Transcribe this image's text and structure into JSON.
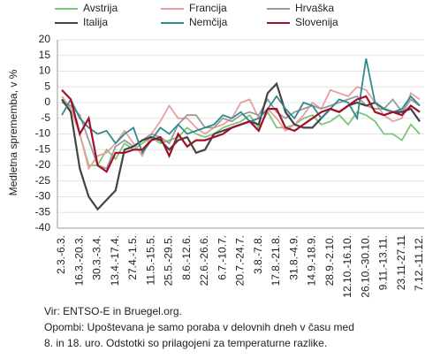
{
  "chart_data": {
    "type": "line",
    "ylabel": "Medletna sprememba, v %",
    "categories": [
      "2.3.-6.3.",
      null,
      "16.3.-20.3.",
      null,
      "30.3.-3.4.",
      null,
      "13.4.-17.4.",
      null,
      "27.4.-1.5.",
      null,
      "11.5.-15.5.",
      null,
      "25.5.-29.5.",
      null,
      "8.6.-12.6.",
      null,
      "22.6.-26.6.",
      null,
      "6.7.-10.7.",
      null,
      "20.7.-24.7.",
      null,
      "3.8.-7.8.",
      null,
      "17.8.-21.8.",
      null,
      "31.8.-4.9.",
      null,
      "14.9.-18.9.",
      null,
      "28.9.-2.10.",
      null,
      "12.10.-16.10.",
      null,
      "26.10.-30.10.",
      null,
      "9.11.-13.11.",
      null,
      "23.11-27.11",
      null,
      "7.12.-11.12."
    ],
    "series": [
      {
        "name": "Avstrija",
        "color": "#7cc57a",
        "values": [
          1,
          -2,
          -10,
          -20,
          -20,
          -15,
          -18,
          -13,
          -15,
          -13,
          -11,
          -13,
          -12,
          -11,
          -8,
          -10,
          -11,
          -10,
          -8,
          -7,
          -6,
          -4,
          -8,
          -3,
          -8,
          -8,
          -7,
          -5,
          -4,
          -7,
          -6,
          -4,
          -7,
          -3,
          -4,
          -6,
          -10,
          -10,
          -12,
          -7,
          -10
        ]
      },
      {
        "name": "Francija",
        "color": "#e8a09c",
        "values": [
          2,
          -2,
          -10,
          -21,
          -17,
          -16,
          -13,
          -9,
          -13,
          -17,
          -10,
          -6,
          -1,
          -5,
          -5,
          -8,
          -10,
          -8,
          -7,
          -5,
          0,
          1,
          -5,
          -2,
          -5,
          -9,
          -7,
          -4,
          0,
          -2,
          4,
          3,
          2,
          5,
          4,
          0,
          -4,
          -6,
          -5,
          3,
          1
        ]
      },
      {
        "name": "Hrvaška",
        "color": "#9a9a9a",
        "values": [
          0,
          -1,
          -4,
          -12,
          -20,
          -21,
          -14,
          -12,
          -14,
          -12,
          -10,
          -11,
          -13,
          -7,
          -4,
          -4,
          -8,
          -8,
          -5,
          -6,
          -4,
          -3,
          -4,
          1,
          -3,
          -5,
          -3,
          -2,
          -1,
          -2,
          -1,
          0,
          1,
          2,
          -1,
          -2,
          -2,
          1,
          -3,
          1,
          -1
        ]
      },
      {
        "name": "Italija",
        "color": "#444444",
        "values": [
          1,
          -3,
          -21,
          -30,
          -34,
          -31,
          -28,
          -15,
          -14,
          -12,
          -11,
          -12,
          -15,
          -12,
          -11,
          -16,
          -15,
          -10,
          -9,
          -8,
          -7,
          -6,
          -7,
          3,
          6,
          -3,
          -7,
          -8,
          -8,
          -5,
          -2,
          -3,
          -1,
          0,
          -1,
          0,
          -2,
          -3,
          -3,
          -2,
          -6
        ]
      },
      {
        "name": "Nemčija",
        "color": "#2e8a8f",
        "values": [
          -4,
          1,
          -5,
          -8,
          -10,
          -9,
          -13,
          -10,
          -8,
          -16,
          -12,
          -8,
          -10,
          -7,
          -10,
          -9,
          -8,
          -7,
          -4,
          -5,
          -3,
          -6,
          -5,
          -2,
          2,
          -2,
          -5,
          0,
          -1,
          -5,
          -2,
          1,
          0,
          -5,
          14,
          0,
          -2,
          -3,
          -2,
          2,
          -1
        ]
      },
      {
        "name": "Slovenija",
        "color": "#a0102a",
        "values": [
          4,
          1,
          -10,
          -5,
          -20,
          -22,
          -16,
          -16,
          -15,
          -15,
          -12,
          -11,
          -17,
          -10,
          -14,
          -12,
          -12,
          -11,
          -10,
          -8,
          -7,
          -6,
          -9,
          -2,
          -2,
          -8,
          -9,
          -7,
          -5,
          -3,
          -2,
          -3,
          -1,
          1,
          2,
          -3,
          -4,
          -3,
          -4,
          -1,
          -3
        ]
      }
    ],
    "ylim": [
      -40,
      20
    ],
    "yticks": [
      20,
      15,
      10,
      5,
      0,
      -5,
      -10,
      -15,
      -20,
      -25,
      -30,
      -35,
      -40
    ]
  },
  "notes": [
    "Vir: ENTSO-E in Bruegel.org.",
    "Opombi: Upoštevana je samo poraba v delovnih dneh v času med",
    "8. in 18. uro. Odstotki so prilagojeni za temperaturne razlike."
  ]
}
